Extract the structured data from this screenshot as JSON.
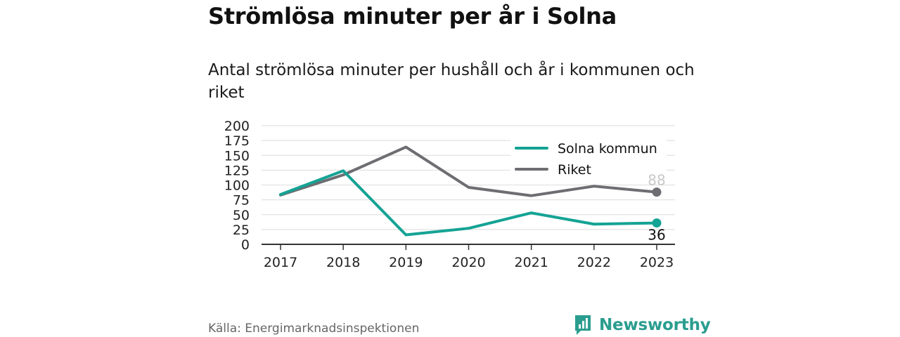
{
  "header": {
    "title": "Strömlösa minuter per år i Solna",
    "subtitle": "Antal strömlösa minuter per hushåll och år i kommunen och riket"
  },
  "footer": {
    "source": "Källa: Energimarknadsinspektionen",
    "brand": "Newsworthy"
  },
  "colors": {
    "solna": "#14a394",
    "riket": "#6d6d72",
    "grid": "#e2e2e2",
    "axis": "#333333",
    "brand": "#2a9d8f"
  },
  "chart_data": {
    "type": "line",
    "categories": [
      "2017",
      "2018",
      "2019",
      "2020",
      "2021",
      "2022",
      "2023"
    ],
    "series": [
      {
        "name": "Solna kommun",
        "values": [
          84,
          124,
          16,
          27,
          53,
          34,
          36
        ],
        "end_label": "36"
      },
      {
        "name": "Riket",
        "values": [
          83,
          117,
          164,
          96,
          82,
          98,
          88
        ],
        "end_label": "88"
      }
    ],
    "yticks": [
      "200",
      "175",
      "150",
      "125",
      "100",
      "75",
      "50",
      "25",
      "0"
    ],
    "ylim": [
      0,
      200
    ],
    "grid": true,
    "legend": "top-right"
  }
}
